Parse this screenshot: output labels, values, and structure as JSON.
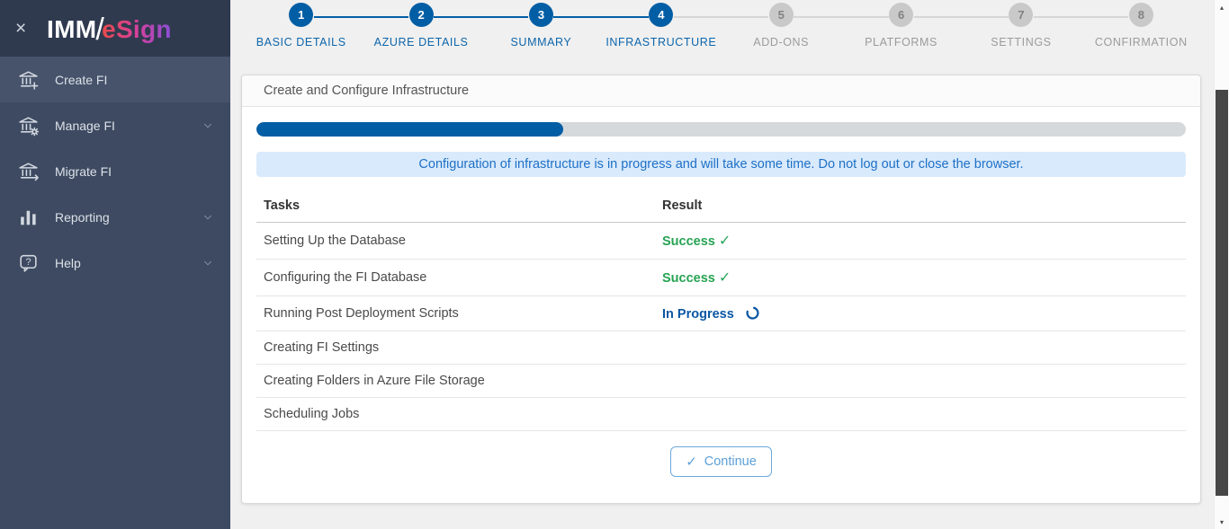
{
  "app": {
    "logo_part1": "IMM",
    "logo_slash": "/",
    "logo_part2": "eSign",
    "close_icon": "×"
  },
  "icons": {
    "check": "✓",
    "scroll_up": "▴",
    "scroll_down": "▾"
  },
  "colors": {
    "primary_blue": "#015ea5",
    "step_label_blue": "#0d65ab",
    "inactive_gray": "#c9c9c9",
    "success_green": "#27a353",
    "in_progress_blue": "#0b57a4",
    "alert_bg": "#d9eafc",
    "alert_text": "#1e70c6",
    "sidebar_bg": "#3d4a61",
    "sidebar_header_bg": "#2f3a4f",
    "sidebar_active_bg": "#46536b",
    "continue_blue": "#5c9fd6",
    "logo_gradient": [
      "#e84b4b",
      "#d6409b",
      "#8a4fd8"
    ]
  },
  "sidebar": {
    "items": [
      {
        "label": "Create FI",
        "icon": "bank-plus",
        "active": true,
        "chevron": false
      },
      {
        "label": "Manage FI",
        "icon": "bank-gear",
        "active": false,
        "chevron": true
      },
      {
        "label": "Migrate FI",
        "icon": "bank-arrow",
        "active": false,
        "chevron": false
      },
      {
        "label": "Reporting",
        "icon": "bar-chart",
        "active": false,
        "chevron": true
      },
      {
        "label": "Help",
        "icon": "help-bubble",
        "active": false,
        "chevron": true
      }
    ]
  },
  "stepper": {
    "steps": [
      {
        "number": "1",
        "label": "BASIC DETAILS",
        "state": "done"
      },
      {
        "number": "2",
        "label": "AZURE DETAILS",
        "state": "done"
      },
      {
        "number": "3",
        "label": "SUMMARY",
        "state": "done"
      },
      {
        "number": "4",
        "label": "INFRASTRUCTURE",
        "state": "done"
      },
      {
        "number": "5",
        "label": "ADD-ONS",
        "state": "upcoming"
      },
      {
        "number": "6",
        "label": "PLATFORMS",
        "state": "upcoming"
      },
      {
        "number": "7",
        "label": "SETTINGS",
        "state": "upcoming"
      },
      {
        "number": "8",
        "label": "CONFIRMATION",
        "state": "upcoming"
      }
    ]
  },
  "panel": {
    "title": "Create and Configure Infrastructure",
    "progress_percent": 33,
    "alert": "Configuration of infrastructure is in progress and will take some time. Do not log out or close the browser.",
    "table": {
      "headers": [
        "Tasks",
        "Result"
      ],
      "rows": [
        {
          "task": "Setting Up the Database",
          "result": "Success",
          "status": "success"
        },
        {
          "task": "Configuring the FI Database",
          "result": "Success",
          "status": "success"
        },
        {
          "task": "Running Post Deployment Scripts",
          "result": "In Progress",
          "status": "in-progress"
        },
        {
          "task": "Creating FI Settings",
          "result": "",
          "status": "pending"
        },
        {
          "task": "Creating Folders in Azure File Storage",
          "result": "",
          "status": "pending"
        },
        {
          "task": "Scheduling Jobs",
          "result": "",
          "status": "pending"
        }
      ]
    },
    "continue_label": "Continue"
  }
}
